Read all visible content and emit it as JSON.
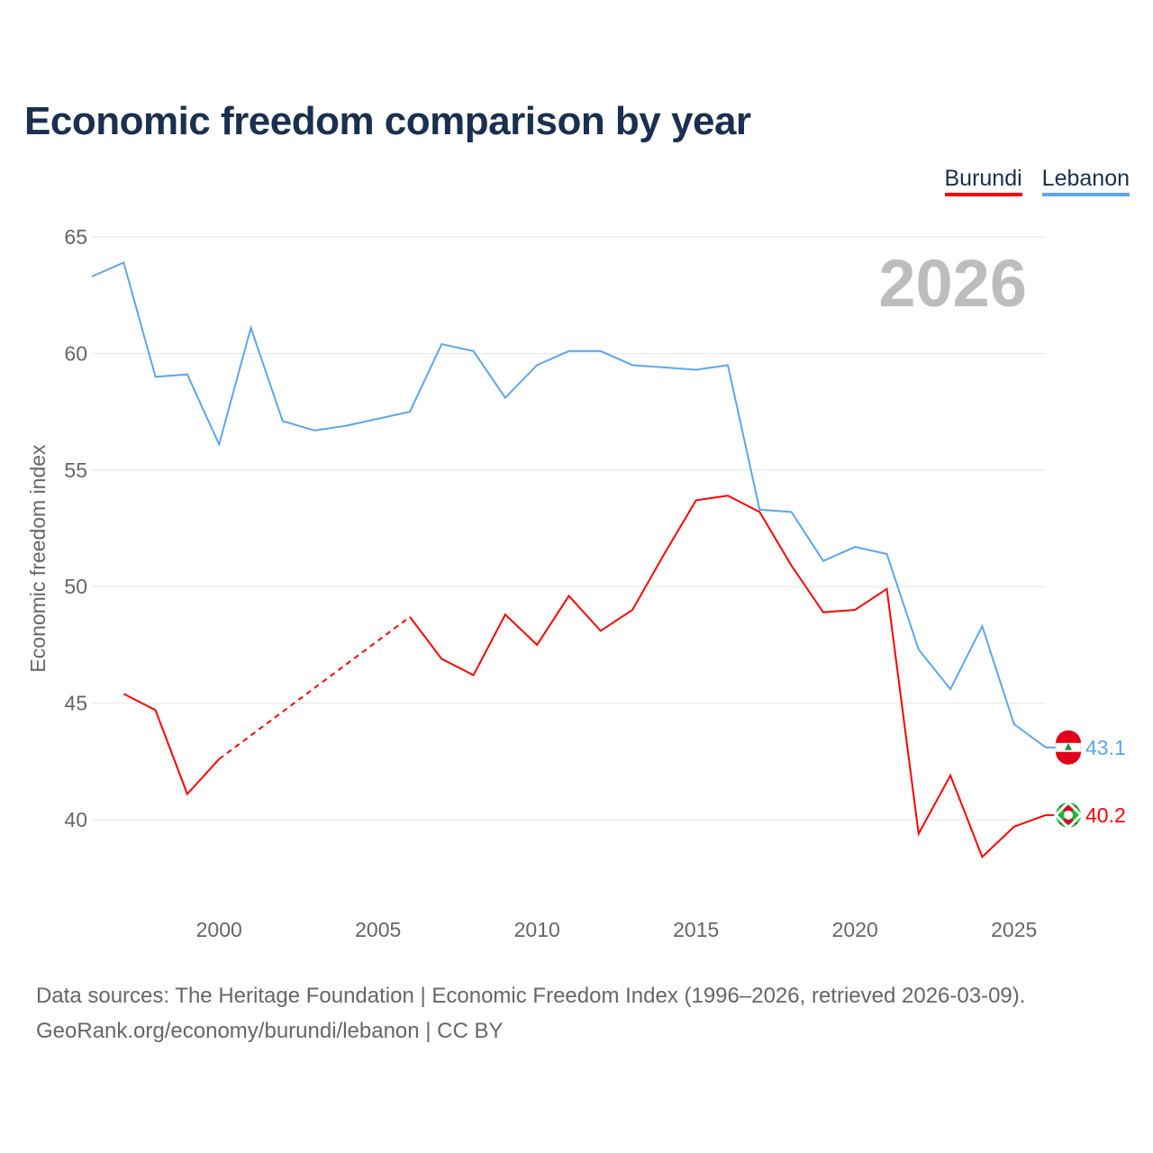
{
  "chart_data": {
    "type": "line",
    "title": "Economic freedom comparison by year",
    "ylabel": "Economic freedom index",
    "xlabel": "",
    "ylim": [
      35,
      65
    ],
    "xlim": [
      1996,
      2026
    ],
    "yticks": [
      40,
      45,
      50,
      55,
      60,
      65
    ],
    "xticks": [
      2000,
      2005,
      2010,
      2015,
      2020,
      2025
    ],
    "grid": true,
    "legend_placement": "top-right",
    "year_label": "2026",
    "x": [
      1996,
      1997,
      1998,
      1999,
      2000,
      2001,
      2002,
      2003,
      2004,
      2005,
      2006,
      2007,
      2008,
      2009,
      2010,
      2011,
      2012,
      2013,
      2014,
      2015,
      2016,
      2017,
      2018,
      2019,
      2020,
      2021,
      2022,
      2023,
      2024,
      2025,
      2026
    ],
    "series": [
      {
        "name": "Burundi",
        "color": "#ff0000",
        "values": [
          null,
          45.4,
          44.7,
          41.1,
          42.6,
          null,
          null,
          null,
          null,
          null,
          48.7,
          46.9,
          46.2,
          48.8,
          47.5,
          49.6,
          48.1,
          49.0,
          51.4,
          53.7,
          53.9,
          53.2,
          50.9,
          48.9,
          49.0,
          49.9,
          39.4,
          41.9,
          38.4,
          39.7,
          40.2
        ],
        "end_label": "40.2"
      },
      {
        "name": "Lebanon",
        "color": "#5ea5ec",
        "values": [
          63.3,
          63.9,
          59.0,
          59.1,
          56.1,
          61.1,
          57.1,
          56.7,
          56.9,
          57.2,
          57.5,
          60.4,
          60.1,
          58.1,
          59.5,
          60.1,
          60.1,
          59.5,
          59.4,
          59.3,
          59.5,
          53.3,
          53.2,
          51.1,
          51.7,
          51.4,
          47.3,
          45.6,
          48.3,
          44.1,
          43.1
        ],
        "end_label": "43.1"
      }
    ]
  },
  "footer": {
    "line1": "Data sources: The Heritage Foundation | Economic Freedom Index (1996–2026, retrieved 2026-03-09).",
    "line2": "GeoRank.org/economy/burundi/lebanon | CC BY"
  }
}
